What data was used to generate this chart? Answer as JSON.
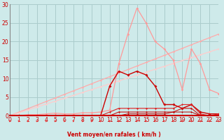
{
  "bg_color": "#ceeaea",
  "grid_color": "#aacccc",
  "xlabel": "Vent moyen/en rafales ( km/h )",
  "xlim": [
    0,
    23
  ],
  "ylim": [
    0,
    30
  ],
  "xticks": [
    0,
    1,
    2,
    3,
    4,
    5,
    6,
    7,
    8,
    9,
    10,
    11,
    12,
    13,
    14,
    15,
    16,
    17,
    18,
    19,
    20,
    21,
    22,
    23
  ],
  "yticks": [
    0,
    5,
    10,
    15,
    20,
    25,
    30
  ],
  "x": [
    0,
    1,
    2,
    3,
    4,
    5,
    6,
    7,
    8,
    9,
    10,
    11,
    12,
    13,
    14,
    15,
    16,
    17,
    18,
    19,
    20,
    21,
    22,
    23
  ],
  "diag1_y": [
    0,
    0.96,
    1.91,
    2.87,
    3.83,
    4.78,
    5.74,
    6.7,
    7.65,
    8.61,
    9.57,
    10.52,
    11.48,
    12.43,
    13.39,
    14.35,
    15.3,
    16.26,
    17.22,
    18.17,
    19.13,
    20.09,
    21.04,
    22.0
  ],
  "diag2_y": [
    0,
    0.78,
    1.57,
    2.35,
    3.13,
    3.91,
    4.7,
    5.48,
    6.26,
    7.04,
    7.83,
    8.61,
    9.39,
    10.17,
    10.96,
    11.74,
    12.52,
    13.3,
    14.09,
    14.87,
    15.65,
    16.43,
    17.22,
    18.0
  ],
  "pink_y": [
    0,
    0,
    0.3,
    0.3,
    0.5,
    0.7,
    0.5,
    0.5,
    0.8,
    0.8,
    1,
    1.5,
    14,
    22,
    29,
    25,
    20,
    18,
    15,
    7,
    18,
    14,
    7,
    6
  ],
  "red_main_y": [
    0,
    0,
    0,
    0,
    0,
    0,
    0,
    0,
    0,
    0,
    0,
    8,
    12,
    11,
    12,
    11,
    8,
    3,
    3,
    2,
    3,
    1,
    0.5,
    0.5
  ],
  "red_low1_y": [
    0,
    0,
    0,
    0,
    0,
    0,
    0,
    0,
    0,
    0,
    0,
    1,
    2,
    2,
    2,
    2,
    2,
    2,
    2,
    3,
    3,
    0.5,
    0,
    0.5
  ],
  "red_low2_y": [
    0,
    0,
    0,
    0,
    0,
    0,
    0,
    0,
    0,
    0,
    0,
    0,
    1,
    1,
    1,
    1,
    1,
    1,
    1,
    2,
    2,
    0,
    0,
    0
  ],
  "red_low3_y": [
    0,
    0,
    0,
    0,
    0,
    0,
    0,
    0,
    0,
    0,
    0,
    0,
    0,
    0.5,
    0.5,
    0.5,
    0.5,
    0.5,
    1,
    1,
    1,
    0,
    0,
    0
  ],
  "color_diag1": "#ffaaaa",
  "color_diag2": "#ffcccc",
  "color_pink": "#ff9999",
  "color_red_main": "#cc0000",
  "color_red_low1": "#dd2222",
  "color_red_low2": "#cc1111",
  "color_red_low3": "#bb0000",
  "arrow_color": "#ee3333",
  "tick_color": "#cc0000",
  "xlabel_color": "#cc0000",
  "xlabel_fontsize": 5.5,
  "tick_fontsize": 5.5
}
